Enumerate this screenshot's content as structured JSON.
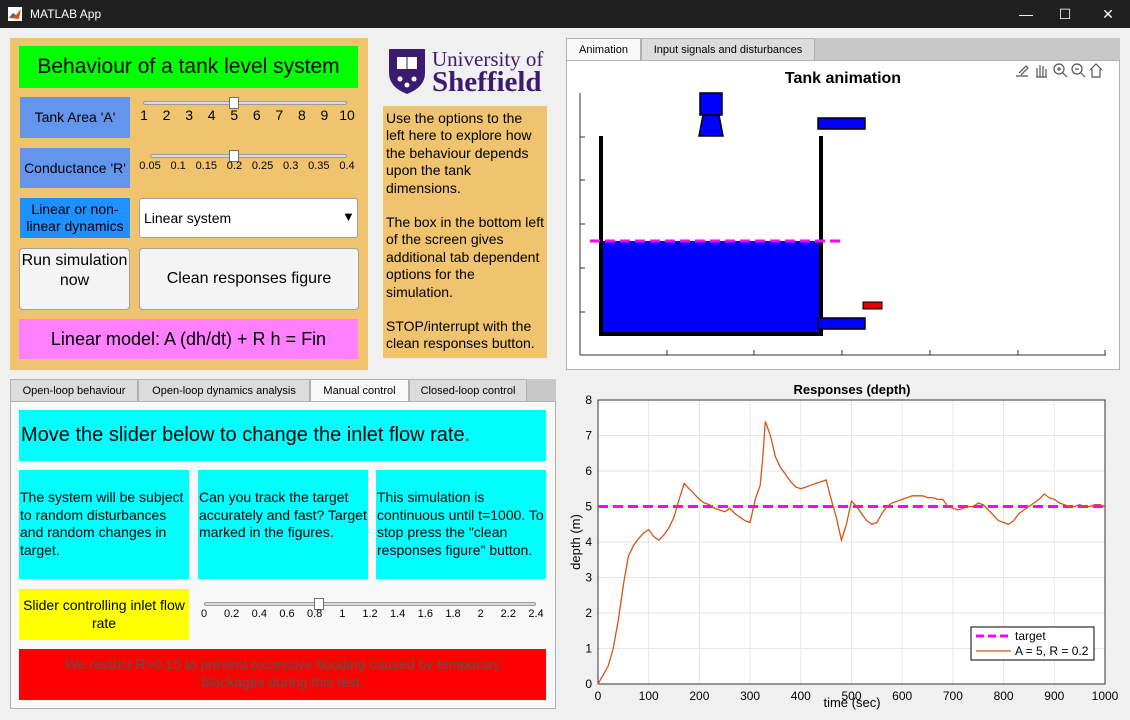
{
  "window": {
    "title": "MATLAB App",
    "minimize": "—",
    "maximize": "☐",
    "close": "✕"
  },
  "header": {
    "title": "Behaviour of a tank level system",
    "logo_line1": "University of",
    "logo_line2": "Sheffield",
    "instructions": [
      "Use the options to the left here to explore how the behaviour depends upon the tank dimensions.",
      "The box in the bottom left of the screen gives additional tab dependent options for the simulation.",
      "STOP/interrupt with the clean responses button."
    ]
  },
  "controls": {
    "tank_area_label": "Tank Area 'A'",
    "tank_area_ticks": [
      "1",
      "2",
      "3",
      "4",
      "5",
      "6",
      "7",
      "8",
      "9",
      "10"
    ],
    "tank_area_value": 5,
    "conductance_label": "Conductance 'R'",
    "conductance_ticks": [
      "0.05",
      "0.1",
      "0.15",
      "0.2",
      "0.25",
      "0.3",
      "0.35",
      "0.4"
    ],
    "conductance_value": 0.2,
    "dynamics_label": "Linear or non-linear dynamics",
    "dynamics_value": "Linear system",
    "run_button": "Run simulation now",
    "clean_button": "Clean responses figure",
    "model_text": "Linear model:  A (dh/dt) + R h = Fin"
  },
  "top_tabs": [
    "Animation",
    "Input signals and disturbances"
  ],
  "animation": {
    "title": "Tank animation",
    "level_fraction": 0.47,
    "target_fraction": 0.47
  },
  "bottom_tabs": [
    "Open-loop behaviour",
    "Open-loop dynamics analysis",
    "Manual control",
    "Closed-loop control"
  ],
  "manual": {
    "heading": "Move the slider below to change the inlet flow rate.",
    "box1": "The system will be subject to random disturbances and random changes in target.",
    "box2": "Can you track the target accurately and fast? Target marked in the figures.",
    "box3": "This simulation is continuous until t=1000. To stop press the \"clean responses figure\" button.",
    "slider_label": "Slider controlling inlet flow rate",
    "slider_ticks": [
      "0",
      "0.2",
      "0.4",
      "0.6",
      "0.8",
      "1",
      "1.2",
      "1.4",
      "1.6",
      "1.8",
      "2",
      "2.2",
      "2.4"
    ],
    "slider_value": 0.83,
    "warning": "We restrict R>0.15 to prevent excessive flooding caused by temporary blockages during this test."
  },
  "colors": {
    "orange_panel": "#f0c36e",
    "green": "#00ff00",
    "blue_label": "#6495ed",
    "pink": "#ff80ff",
    "cyan": "#00ffff",
    "yellow": "#ffff00",
    "red": "#ff0000",
    "tank_blue": "#0000ff",
    "target": "#ff00ff",
    "response": "#d95319"
  },
  "toolbar_icons": [
    "export-icon",
    "pan-icon",
    "zoom-in-icon",
    "zoom-out-icon",
    "home-icon"
  ],
  "chart_data": {
    "type": "line",
    "title": "Responses (depth)",
    "xlabel": "time (sec)",
    "ylabel": "depth (m)",
    "xlim": [
      0,
      1000
    ],
    "ylim": [
      0,
      8
    ],
    "xticks": [
      0,
      100,
      200,
      300,
      400,
      500,
      600,
      700,
      800,
      900,
      1000
    ],
    "yticks": [
      0,
      1,
      2,
      3,
      4,
      5,
      6,
      7,
      8
    ],
    "grid": true,
    "legend_position": "bottom-right",
    "series": [
      {
        "name": "target",
        "style": "dashed",
        "x": [
          0,
          1000
        ],
        "y": [
          5,
          5
        ]
      },
      {
        "name": "A = 5, R = 0.2",
        "style": "solid",
        "x": [
          0,
          20,
          30,
          40,
          50,
          60,
          70,
          80,
          90,
          100,
          110,
          120,
          130,
          140,
          150,
          160,
          170,
          180,
          190,
          200,
          210,
          220,
          230,
          240,
          250,
          260,
          270,
          280,
          290,
          300,
          310,
          320,
          325,
          330,
          340,
          350,
          360,
          370,
          380,
          390,
          400,
          410,
          420,
          430,
          440,
          450,
          460,
          470,
          480,
          490,
          500,
          510,
          520,
          530,
          540,
          550,
          560,
          570,
          580,
          590,
          600,
          610,
          620,
          630,
          640,
          650,
          660,
          670,
          680,
          690,
          700,
          710,
          720,
          730,
          740,
          750,
          760,
          770,
          780,
          790,
          800,
          810,
          820,
          830,
          840,
          850,
          860,
          870,
          880,
          890,
          900,
          910,
          920,
          930,
          940,
          950,
          960,
          970,
          980,
          990,
          1000
        ],
        "y": [
          0,
          0.5,
          1.0,
          1.8,
          2.8,
          3.6,
          3.9,
          4.1,
          4.25,
          4.35,
          4.15,
          4.05,
          4.2,
          4.4,
          4.7,
          5.2,
          5.65,
          5.5,
          5.35,
          5.2,
          5.1,
          5.05,
          4.95,
          4.9,
          4.85,
          4.95,
          4.8,
          4.7,
          4.6,
          4.55,
          5.2,
          5.6,
          6.4,
          7.4,
          7.0,
          6.4,
          6.1,
          5.9,
          5.7,
          5.55,
          5.5,
          5.55,
          5.6,
          5.65,
          5.7,
          5.75,
          5.2,
          4.7,
          4.05,
          4.5,
          5.15,
          5.0,
          4.8,
          4.6,
          4.5,
          4.55,
          4.8,
          5.0,
          5.1,
          5.15,
          5.2,
          5.25,
          5.3,
          5.3,
          5.3,
          5.25,
          5.25,
          5.2,
          5.2,
          5.0,
          4.95,
          4.9,
          4.95,
          5.0,
          5.0,
          5.1,
          5.05,
          4.9,
          4.75,
          4.6,
          4.55,
          4.5,
          4.6,
          4.8,
          4.9,
          5.0,
          5.1,
          5.2,
          5.35,
          5.25,
          5.2,
          5.1,
          5.05,
          5.0,
          5.0,
          5.05,
          5.0,
          5.0,
          5.05,
          5.05,
          5.0
        ]
      }
    ]
  }
}
